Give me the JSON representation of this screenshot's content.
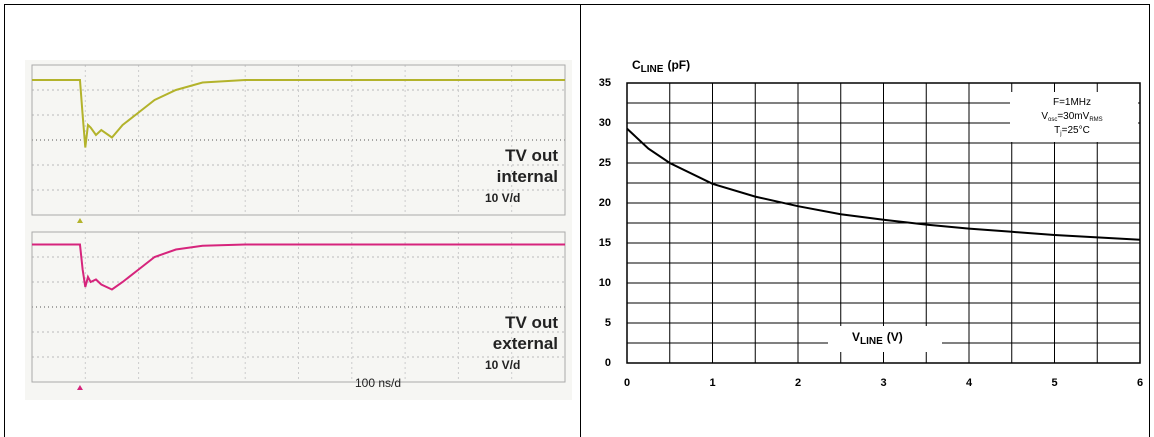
{
  "chart_data": [
    {
      "type": "scope",
      "x": [
        0,
        0.9,
        0.95,
        1.0,
        1.05,
        1.1,
        1.2,
        1.3,
        1.5,
        1.7,
        2.0,
        2.3,
        2.7,
        3.2,
        4,
        6,
        8,
        10
      ],
      "xlim": [
        0,
        10
      ],
      "ylim": [
        -3,
        3
      ],
      "xscale": "100 ns/d",
      "series": [
        {
          "name": "TV out internal",
          "scale": "10 V/d",
          "color": "#b3b32b",
          "values": [
            2.4,
            2.4,
            1.0,
            -0.3,
            0.6,
            0.5,
            0.2,
            0.4,
            0.1,
            0.6,
            1.1,
            1.6,
            2.0,
            2.3,
            2.4,
            2.4,
            2.4,
            2.4
          ]
        },
        {
          "name": "TV out external",
          "scale": "10 V/d",
          "color": "#d6247c",
          "values": [
            2.5,
            2.5,
            1.5,
            0.8,
            1.2,
            1.0,
            1.1,
            0.9,
            0.7,
            1.0,
            1.5,
            2.0,
            2.3,
            2.45,
            2.5,
            2.5,
            2.5,
            2.5
          ]
        }
      ]
    },
    {
      "type": "line",
      "ylabel": {
        "main": "C",
        "sub": "LINE",
        "unit": "(pF)"
      },
      "xlabel": {
        "main": "V",
        "sub": "LINE",
        "unit": "(V)"
      },
      "annotation": [
        {
          "main": "F=1MHz"
        },
        {
          "main": "V",
          "sub": "osc",
          "tail": "=30mV",
          "sub2": "RMS"
        },
        {
          "main": "T",
          "sub": "j",
          "tail": "=25°C"
        }
      ],
      "x": [
        0,
        0.25,
        0.5,
        1,
        1.5,
        2,
        2.5,
        3,
        3.5,
        4,
        4.5,
        5,
        5.5,
        6
      ],
      "series": [
        {
          "name": "C",
          "color": "#000000",
          "values": [
            29.3,
            26.8,
            25.0,
            22.4,
            20.8,
            19.6,
            18.6,
            17.9,
            17.3,
            16.8,
            16.4,
            16.0,
            15.7,
            15.4
          ]
        }
      ],
      "xlim": [
        0,
        6
      ],
      "ylim": [
        0,
        35
      ],
      "xticks": [
        0,
        1,
        2,
        3,
        4,
        5,
        6
      ],
      "yticks": [
        0,
        5,
        10,
        15,
        20,
        25,
        30,
        35
      ],
      "xminorticks": [
        0.5,
        1.5,
        2.5,
        3.5,
        4.5,
        5.5
      ],
      "yminorticks": [
        2.5,
        7.5,
        12.5,
        17.5,
        22.5,
        27.5,
        32.5
      ],
      "grid": true
    }
  ]
}
